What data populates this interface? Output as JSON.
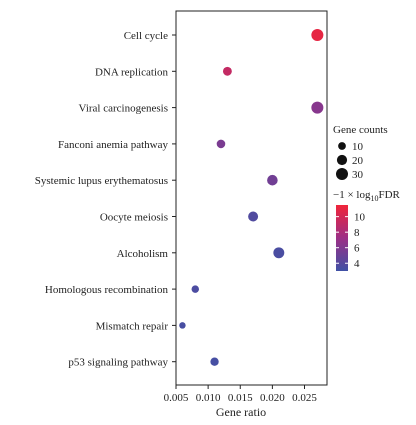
{
  "chart_data": {
    "type": "scatter",
    "title": "",
    "xlabel": "Gene ratio",
    "ylabel": "",
    "xlim": [
      0.005,
      0.0285
    ],
    "x_ticks": [
      0.005,
      0.01,
      0.015,
      0.02,
      0.025
    ],
    "x_tick_labels": [
      "0.005",
      "0.010",
      "0.015",
      "0.020",
      "0.025"
    ],
    "grid": false,
    "legend_position": "right",
    "categories": [
      "Cell cycle",
      "DNA replication",
      "Viral carcinogenesis",
      "Fanconi anemia pathway",
      "Systemic lupus erythematosus",
      "Oocyte meiosis",
      "Alcoholism",
      "Homologous recombination",
      "Mismatch repair",
      "p53 signaling pathway"
    ],
    "points": [
      {
        "pathway": "Cell cycle",
        "gene_ratio": 0.027,
        "gene_count": 30,
        "neg_log10_fdr": 11.0
      },
      {
        "pathway": "DNA replication",
        "gene_ratio": 0.013,
        "gene_count": 14,
        "neg_log10_fdr": 9.2
      },
      {
        "pathway": "Viral carcinogenesis",
        "gene_ratio": 0.027,
        "gene_count": 30,
        "neg_log10_fdr": 6.3
      },
      {
        "pathway": "Fanconi anemia pathway",
        "gene_ratio": 0.012,
        "gene_count": 13,
        "neg_log10_fdr": 5.7
      },
      {
        "pathway": "Systemic lupus erythematosus",
        "gene_ratio": 0.02,
        "gene_count": 22,
        "neg_log10_fdr": 5.3
      },
      {
        "pathway": "Oocyte meiosis",
        "gene_ratio": 0.017,
        "gene_count": 19,
        "neg_log10_fdr": 3.8
      },
      {
        "pathway": "Alcoholism",
        "gene_ratio": 0.021,
        "gene_count": 24,
        "neg_log10_fdr": 3.5
      },
      {
        "pathway": "Homologous recombination",
        "gene_ratio": 0.008,
        "gene_count": 9,
        "neg_log10_fdr": 3.6
      },
      {
        "pathway": "Mismatch repair",
        "gene_ratio": 0.006,
        "gene_count": 6,
        "neg_log10_fdr": 3.4
      },
      {
        "pathway": "p53 signaling pathway",
        "gene_ratio": 0.011,
        "gene_count": 12,
        "neg_log10_fdr": 3.3
      }
    ],
    "size_legend": {
      "title": "Gene counts",
      "values": [
        10,
        20,
        30
      ],
      "labels": [
        "10",
        "20",
        "30"
      ]
    },
    "color_legend": {
      "title_prefix": "−1 × log",
      "title_sub": "10",
      "title_suffix": "FDR",
      "min": 3.0,
      "max": 11.5,
      "ticks": [
        10,
        8,
        6,
        4
      ],
      "tick_labels": [
        "10",
        "8",
        "6",
        "4"
      ],
      "color_low": "#3f51a5",
      "color_mid": "#9c2f86",
      "color_high": "#f0253a"
    }
  }
}
